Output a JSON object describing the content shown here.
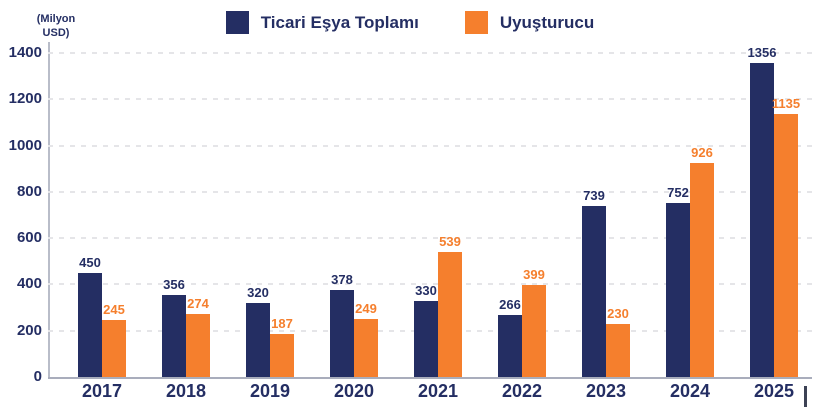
{
  "chart_data": {
    "type": "bar",
    "title": "",
    "unit_label_lines": [
      "(Milyon",
      "USD)"
    ],
    "categories": [
      "2017",
      "2018",
      "2019",
      "2020",
      "2021",
      "2022",
      "2023",
      "2024",
      "2025"
    ],
    "series": [
      {
        "name": "Ticari Eşya Toplamı",
        "color": "#242e63",
        "values": [
          450,
          356,
          320,
          378,
          330,
          266,
          739,
          752,
          1356
        ]
      },
      {
        "name": "Uyuşturucu",
        "color": "#f57f2d",
        "values": [
          245,
          274,
          187,
          249,
          539,
          399,
          230,
          926,
          1135
        ]
      }
    ],
    "y_ticks": [
      0,
      200,
      400,
      600,
      800,
      1000,
      1200,
      1400
    ],
    "ylim": [
      0,
      1400
    ],
    "grid": "horizontal-dashed",
    "legend_position": "top-center",
    "colors": {
      "navy": "#242e63",
      "orange": "#f57f2d",
      "gridline": "#e5e5e8",
      "axis": "#a9adbc",
      "background": "#ffffff"
    }
  }
}
